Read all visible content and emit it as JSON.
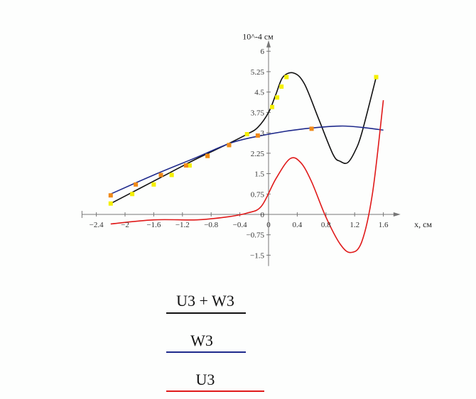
{
  "chart_data": {
    "type": "line",
    "ylabel": "10^-4 см",
    "xlabel": "x, см",
    "xlim": [
      -2.6,
      1.8
    ],
    "ylim": [
      -1.9,
      6.3
    ],
    "x_ticks": [
      {
        "v": -2.4,
        "label": "−2.4"
      },
      {
        "v": -2,
        "label": "−2"
      },
      {
        "v": -1.6,
        "label": "−1.6"
      },
      {
        "v": -1.2,
        "label": "−1.2"
      },
      {
        "v": -0.8,
        "label": "−0.8"
      },
      {
        "v": -0.4,
        "label": "−0.4"
      },
      {
        "v": 0,
        "label": "0"
      },
      {
        "v": 0.4,
        "label": "0.4"
      },
      {
        "v": 0.8,
        "label": "0.8"
      },
      {
        "v": 1.2,
        "label": "1.2"
      },
      {
        "v": 1.6,
        "label": "1.6"
      }
    ],
    "y_ticks": [
      {
        "v": 6,
        "label": "6"
      },
      {
        "v": 5.25,
        "label": "5.25"
      },
      {
        "v": 4.5,
        "label": "4.5"
      },
      {
        "v": 3.75,
        "label": "3.75"
      },
      {
        "v": 3,
        "label": "3"
      },
      {
        "v": 2.25,
        "label": "2.25"
      },
      {
        "v": 1.5,
        "label": "1.5"
      },
      {
        "v": 0.75,
        "label": "0.75"
      },
      {
        "v": 0,
        "label": "0"
      },
      {
        "v": -0.75,
        "label": "−0.75"
      },
      {
        "v": -1.5,
        "label": "−1.5"
      }
    ],
    "series": [
      {
        "name": "U3 + W3",
        "color": "#111111",
        "x": [
          -2.2,
          -1.8,
          -1.4,
          -1.0,
          -0.6,
          -0.3,
          -0.15,
          0.0,
          0.1,
          0.2,
          0.35,
          0.5,
          0.7,
          0.9,
          1.0,
          1.1,
          1.2,
          1.3,
          1.5
        ],
        "y": [
          0.4,
          0.95,
          1.5,
          2.05,
          2.55,
          2.95,
          3.2,
          3.75,
          4.4,
          5.05,
          5.2,
          4.8,
          3.5,
          2.2,
          1.95,
          1.9,
          2.3,
          3.0,
          5.05
        ]
      },
      {
        "name": "W3",
        "color": "#1f2a8c",
        "x": [
          -2.2,
          -1.6,
          -1.0,
          -0.5,
          0.0,
          0.5,
          1.0,
          1.3,
          1.6
        ],
        "y": [
          0.75,
          1.45,
          2.1,
          2.65,
          2.95,
          3.15,
          3.25,
          3.2,
          3.1
        ]
      },
      {
        "name": "U3",
        "color": "#e01a1a",
        "x": [
          -2.2,
          -1.6,
          -1.0,
          -0.6,
          -0.3,
          -0.1,
          0.1,
          0.3,
          0.45,
          0.6,
          0.8,
          1.0,
          1.15,
          1.3,
          1.45,
          1.6
        ],
        "y": [
          -0.35,
          -0.2,
          -0.2,
          -0.1,
          0.05,
          0.3,
          1.3,
          2.05,
          1.9,
          1.2,
          -0.1,
          -1.1,
          -1.4,
          -1.0,
          0.8,
          4.2
        ]
      }
    ],
    "markers": [
      {
        "color": "#f5f000",
        "x": [
          -2.2,
          -1.9,
          -1.6,
          -1.35,
          -1.1,
          -0.85,
          -0.55,
          -0.3,
          0.05,
          0.12,
          0.18,
          0.25,
          1.5
        ],
        "y": [
          0.4,
          0.75,
          1.1,
          1.45,
          1.8,
          2.15,
          2.55,
          2.95,
          3.95,
          4.3,
          4.7,
          5.05,
          5.05
        ]
      },
      {
        "color": "#f08a1a",
        "x": [
          -2.2,
          -1.85,
          -1.5,
          -1.15,
          -0.85,
          -0.55,
          -0.15,
          0.6
        ],
        "y": [
          0.7,
          1.1,
          1.45,
          1.8,
          2.15,
          2.55,
          2.9,
          3.15
        ]
      }
    ]
  },
  "legend": [
    {
      "label": "U3 + W3",
      "color": "#111111"
    },
    {
      "label": "W3",
      "color": "#1f2a8c"
    },
    {
      "label": "U3",
      "color": "#e01a1a"
    }
  ]
}
